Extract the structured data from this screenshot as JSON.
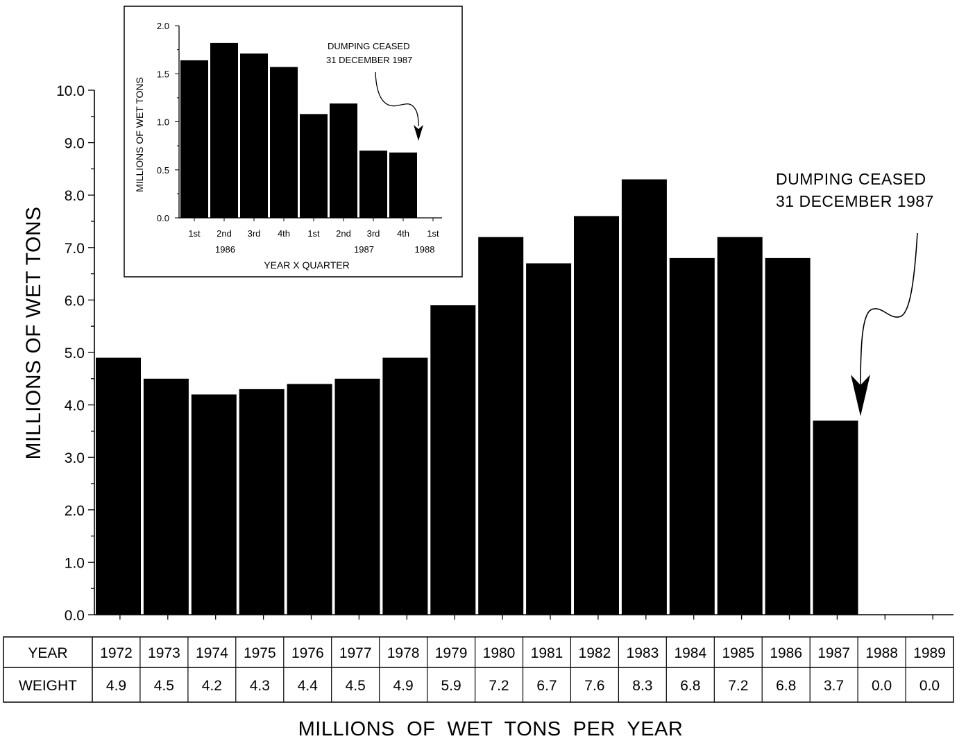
{
  "chart_data": [
    {
      "type": "bar",
      "id": "main",
      "xlabel": "MILLIONS  OF  WET  TONS  PER  YEAR",
      "ylabel": "MILLIONS OF WET TONS",
      "ylim": [
        0,
        10
      ],
      "y_ticks": [
        "0.0",
        "1.0",
        "2.0",
        "3.0",
        "4.0",
        "5.0",
        "6.0",
        "7.0",
        "8.0",
        "9.0",
        "10.0"
      ],
      "categories": [
        "1972",
        "1973",
        "1974",
        "1975",
        "1976",
        "1977",
        "1978",
        "1979",
        "1980",
        "1981",
        "1982",
        "1983",
        "1984",
        "1985",
        "1986",
        "1987",
        "1988",
        "1989"
      ],
      "values": [
        4.9,
        4.5,
        4.2,
        4.3,
        4.4,
        4.5,
        4.9,
        5.9,
        7.2,
        6.7,
        7.6,
        8.3,
        6.8,
        7.2,
        6.8,
        3.7,
        0.0,
        0.0
      ],
      "annotation": {
        "line1": "DUMPING CEASED",
        "line2": "31 DECEMBER 1987"
      },
      "table": {
        "row_labels": [
          "YEAR",
          "WEIGHT"
        ],
        "years": [
          "1972",
          "1973",
          "1974",
          "1975",
          "1976",
          "1977",
          "1978",
          "1979",
          "1980",
          "1981",
          "1982",
          "1983",
          "1984",
          "1985",
          "1986",
          "1987",
          "1988",
          "1989"
        ],
        "weights": [
          "4.9",
          "4.5",
          "4.2",
          "4.3",
          "4.4",
          "4.5",
          "4.9",
          "5.9",
          "7.2",
          "6.7",
          "7.6",
          "8.3",
          "6.8",
          "7.2",
          "6.8",
          "3.7",
          "0.0",
          "0.0"
        ]
      }
    },
    {
      "type": "bar",
      "id": "inset",
      "xlabel": "YEAR X QUARTER",
      "ylabel": "MILLIONS OF WET TONS",
      "ylim": [
        0,
        2
      ],
      "y_ticks": [
        "0.0",
        "0.5",
        "1.0",
        "1.5",
        "2.0"
      ],
      "categories": [
        "1st",
        "2nd",
        "3rd",
        "4th",
        "1st",
        "2nd",
        "3rd",
        "4th",
        "1st"
      ],
      "year_labels": [
        "1986",
        "1987",
        "1988"
      ],
      "values": [
        1.64,
        1.82,
        1.71,
        1.57,
        1.08,
        1.19,
        0.7,
        0.68,
        0.0
      ],
      "annotation": {
        "line1": "DUMPING CEASED",
        "line2": "31 DECEMBER 1987"
      }
    }
  ]
}
